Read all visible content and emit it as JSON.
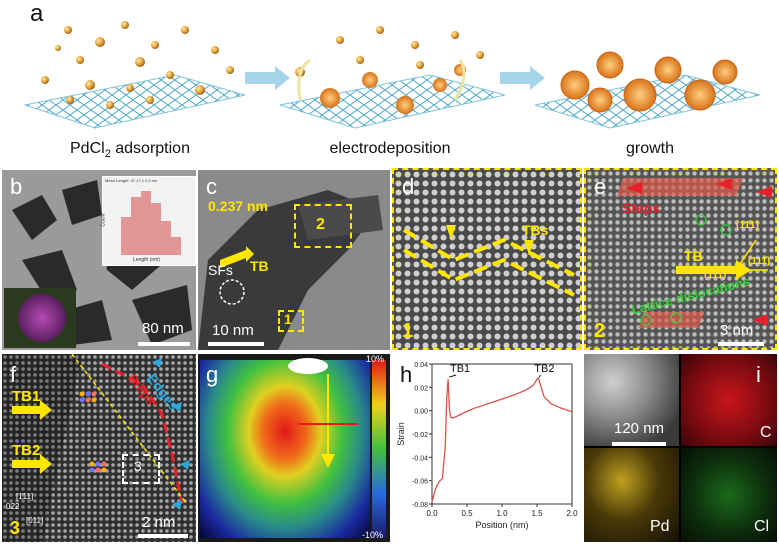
{
  "panel_a": {
    "label": "a",
    "steps": [
      {
        "caption_main": "PdCl",
        "caption_sub": "2",
        "caption_rest": " adsorption"
      },
      {
        "caption_main": "electrodeposition",
        "caption_sub": "",
        "caption_rest": ""
      },
      {
        "caption_main": "growth",
        "caption_sub": "",
        "caption_rest": ""
      }
    ]
  },
  "panel_b": {
    "label": "b",
    "scale": "80 nm",
    "inset_title": "Mean Length: 47.17 ± 0.2 nm",
    "inset_ylabel": "Count",
    "inset_xlabel": "Length (nm)"
  },
  "panel_c": {
    "label": "c",
    "spacing": "0.237 nm",
    "tb": "TB",
    "sfs": "SFs",
    "box1": "1",
    "box2": "2",
    "scale": "10 nm"
  },
  "panel_d": {
    "label": "d",
    "tbs": "TBs",
    "corner": "1"
  },
  "panel_e": {
    "label": "e",
    "steps": "Steps",
    "tb": "TB",
    "m1": "(111)",
    "m2": "(11̄1)",
    "m3": "(111̄)",
    "lattice": "Lattice dislocations",
    "corner": "2",
    "scale": "3 nm"
  },
  "panel_f": {
    "label": "f",
    "tb1": "TB1",
    "tb2": "TB2",
    "steps": "Steps",
    "edges": "Edges",
    "box": "3",
    "corner": "3",
    "scale": "2 nm",
    "idx1": "022",
    "idx2": "[1̄11]",
    "idx3": "[011]"
  },
  "panel_g": {
    "label": "g",
    "top": "10%",
    "bottom": "-10%"
  },
  "panel_h": {
    "label": "h"
  },
  "panel_i": {
    "label": "i",
    "scale": "120 nm",
    "c": "C",
    "pd": "Pd",
    "cl": "Cl"
  },
  "chart_data": {
    "type": "line",
    "title": "",
    "xlabel": "Position (nm)",
    "ylabel": "Strain",
    "xlim": [
      0.0,
      2.0
    ],
    "ylim": [
      -0.08,
      0.04
    ],
    "xticks": [
      "0.0",
      "0.5",
      "1.0",
      "1.5",
      "2.0"
    ],
    "yticks": [
      "0.04",
      "0.02",
      "0.00",
      "-0.02",
      "-0.04",
      "-0.06",
      "-0.08"
    ],
    "annotations": [
      {
        "text": "TB1",
        "x": 0.23,
        "y": 0.027
      },
      {
        "text": "TB2",
        "x": 1.52,
        "y": 0.027
      }
    ],
    "series": [
      {
        "x": [
          0.0,
          0.05,
          0.1,
          0.15,
          0.19,
          0.21,
          0.23,
          0.25,
          0.27,
          0.3,
          0.35,
          0.45,
          0.6,
          0.8,
          1.0,
          1.2,
          1.35,
          1.45,
          1.5,
          1.52,
          1.55,
          1.6,
          1.7,
          1.85,
          2.0
        ],
        "y": [
          -0.078,
          -0.067,
          -0.061,
          -0.058,
          -0.03,
          0.01,
          0.027,
          0.0,
          -0.006,
          -0.006,
          -0.005,
          -0.002,
          0.002,
          0.006,
          0.01,
          0.014,
          0.018,
          0.022,
          0.027,
          0.028,
          0.022,
          0.012,
          0.006,
          0.002,
          -0.001
        ],
        "color": "#d9534f"
      }
    ]
  }
}
